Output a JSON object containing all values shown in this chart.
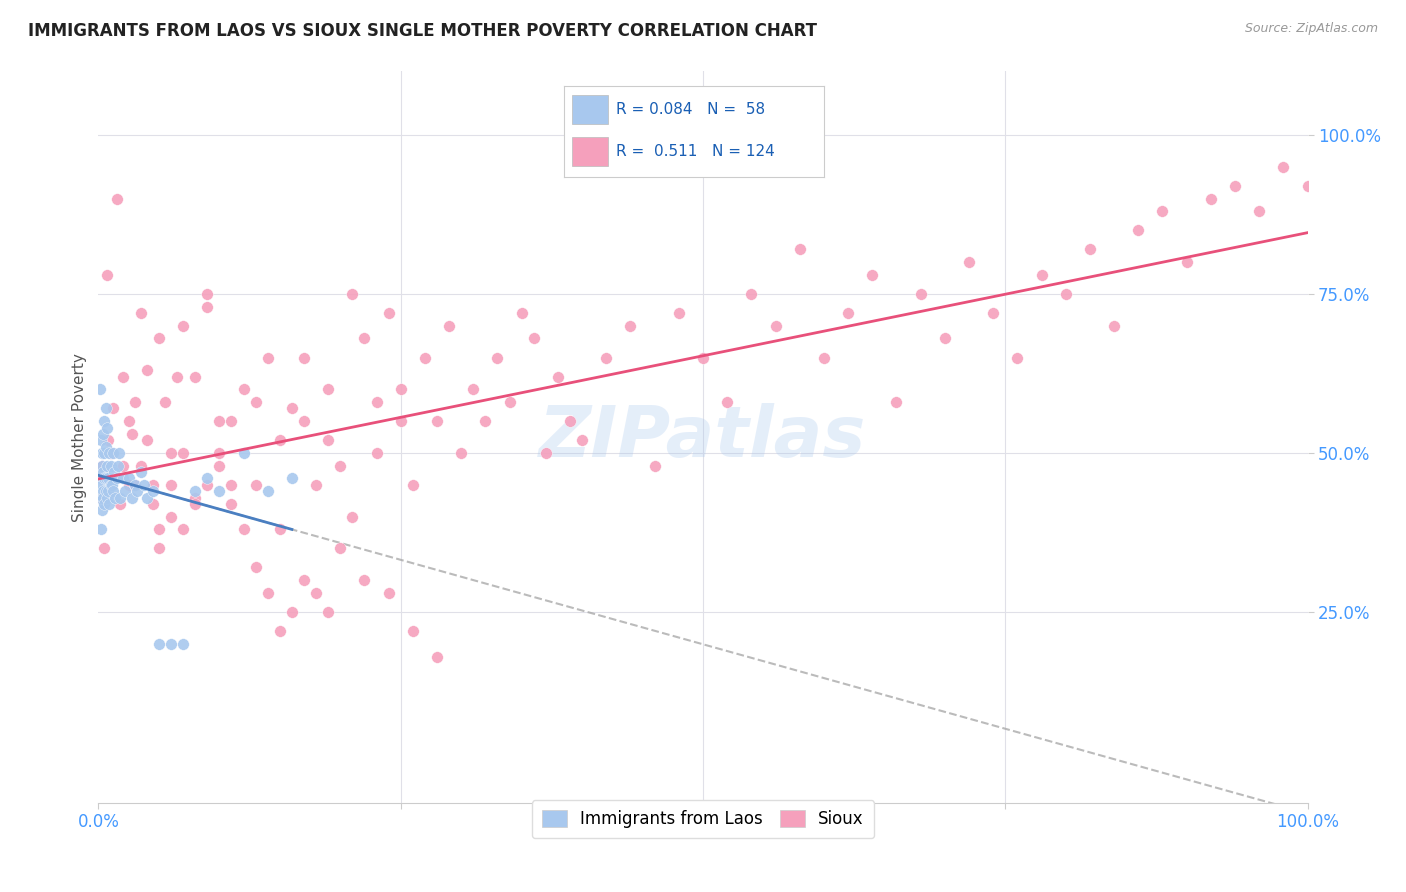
{
  "title": "IMMIGRANTS FROM LAOS VS SIOUX SINGLE MOTHER POVERTY CORRELATION CHART",
  "source": "Source: ZipAtlas.com",
  "ylabel": "Single Mother Poverty",
  "laos_color": "#a8c8ee",
  "sioux_color": "#f5a0bc",
  "laos_line_color": "#4a7fc1",
  "sioux_line_color": "#e8507a",
  "dashed_line_color": "#aaaaaa",
  "watermark": "ZIPatlas",
  "watermark_color": "#a8c8ee",
  "background_color": "#ffffff",
  "grid_color": "#e0e0e8",
  "tick_color": "#4499ff",
  "ylabel_color": "#555555",
  "title_color": "#222222",
  "source_color": "#999999",
  "legend_text_color": "#1a5fb4",
  "xlim": [
    0.0,
    1.0
  ],
  "ylim": [
    -0.05,
    1.1
  ],
  "laos_x": [
    0.001,
    0.001,
    0.002,
    0.002,
    0.002,
    0.003,
    0.003,
    0.003,
    0.003,
    0.004,
    0.004,
    0.004,
    0.004,
    0.005,
    0.005,
    0.005,
    0.005,
    0.006,
    0.006,
    0.006,
    0.006,
    0.007,
    0.007,
    0.007,
    0.008,
    0.008,
    0.009,
    0.009,
    0.01,
    0.01,
    0.011,
    0.012,
    0.012,
    0.013,
    0.014,
    0.015,
    0.016,
    0.017,
    0.018,
    0.02,
    0.022,
    0.025,
    0.028,
    0.03,
    0.032,
    0.035,
    0.038,
    0.04,
    0.045,
    0.05,
    0.06,
    0.07,
    0.08,
    0.09,
    0.1,
    0.12,
    0.14,
    0.16
  ],
  "laos_y": [
    0.43,
    0.6,
    0.38,
    0.52,
    0.46,
    0.45,
    0.48,
    0.41,
    0.5,
    0.44,
    0.47,
    0.53,
    0.43,
    0.5,
    0.46,
    0.55,
    0.42,
    0.51,
    0.46,
    0.57,
    0.44,
    0.48,
    0.43,
    0.54,
    0.46,
    0.44,
    0.42,
    0.5,
    0.45,
    0.48,
    0.45,
    0.44,
    0.5,
    0.47,
    0.43,
    0.46,
    0.48,
    0.5,
    0.43,
    0.46,
    0.44,
    0.46,
    0.43,
    0.45,
    0.44,
    0.47,
    0.45,
    0.43,
    0.44,
    0.2,
    0.2,
    0.2,
    0.44,
    0.46,
    0.44,
    0.5,
    0.44,
    0.46
  ],
  "sioux_x": [
    0.001,
    0.003,
    0.005,
    0.007,
    0.008,
    0.01,
    0.012,
    0.015,
    0.018,
    0.02,
    0.025,
    0.028,
    0.03,
    0.035,
    0.04,
    0.045,
    0.05,
    0.055,
    0.06,
    0.065,
    0.07,
    0.08,
    0.09,
    0.1,
    0.11,
    0.12,
    0.13,
    0.14,
    0.15,
    0.16,
    0.17,
    0.18,
    0.19,
    0.2,
    0.21,
    0.22,
    0.23,
    0.24,
    0.25,
    0.26,
    0.27,
    0.28,
    0.29,
    0.3,
    0.31,
    0.32,
    0.33,
    0.34,
    0.35,
    0.36,
    0.37,
    0.38,
    0.39,
    0.4,
    0.42,
    0.44,
    0.46,
    0.48,
    0.5,
    0.52,
    0.54,
    0.56,
    0.58,
    0.6,
    0.62,
    0.64,
    0.66,
    0.68,
    0.7,
    0.72,
    0.74,
    0.76,
    0.78,
    0.8,
    0.82,
    0.84,
    0.86,
    0.88,
    0.9,
    0.92,
    0.94,
    0.96,
    0.98,
    1.0,
    0.05,
    0.06,
    0.07,
    0.08,
    0.09,
    0.1,
    0.11,
    0.13,
    0.15,
    0.17,
    0.19,
    0.21,
    0.23,
    0.25,
    0.02,
    0.025,
    0.03,
    0.035,
    0.04,
    0.045,
    0.05,
    0.06,
    0.07,
    0.08,
    0.09,
    0.1,
    0.11,
    0.12,
    0.13,
    0.14,
    0.15,
    0.16,
    0.17,
    0.18,
    0.19,
    0.2,
    0.22,
    0.24,
    0.26,
    0.28
  ],
  "sioux_y": [
    0.43,
    0.48,
    0.35,
    0.78,
    0.52,
    0.5,
    0.57,
    0.9,
    0.42,
    0.48,
    0.45,
    0.53,
    0.45,
    0.72,
    0.63,
    0.42,
    0.68,
    0.58,
    0.5,
    0.62,
    0.5,
    0.43,
    0.73,
    0.55,
    0.45,
    0.6,
    0.45,
    0.65,
    0.38,
    0.57,
    0.55,
    0.45,
    0.52,
    0.48,
    0.75,
    0.68,
    0.58,
    0.72,
    0.6,
    0.45,
    0.65,
    0.55,
    0.7,
    0.5,
    0.6,
    0.55,
    0.65,
    0.58,
    0.72,
    0.68,
    0.5,
    0.62,
    0.55,
    0.52,
    0.65,
    0.7,
    0.48,
    0.72,
    0.65,
    0.58,
    0.75,
    0.7,
    0.82,
    0.65,
    0.72,
    0.78,
    0.58,
    0.75,
    0.68,
    0.8,
    0.72,
    0.65,
    0.78,
    0.75,
    0.82,
    0.7,
    0.85,
    0.88,
    0.8,
    0.9,
    0.92,
    0.88,
    0.95,
    0.92,
    0.38,
    0.45,
    0.7,
    0.62,
    0.75,
    0.5,
    0.55,
    0.58,
    0.52,
    0.65,
    0.6,
    0.4,
    0.5,
    0.55,
    0.62,
    0.55,
    0.58,
    0.48,
    0.52,
    0.45,
    0.35,
    0.4,
    0.38,
    0.42,
    0.45,
    0.48,
    0.42,
    0.38,
    0.32,
    0.28,
    0.22,
    0.25,
    0.3,
    0.28,
    0.25,
    0.35,
    0.3,
    0.28,
    0.22,
    0.18
  ]
}
